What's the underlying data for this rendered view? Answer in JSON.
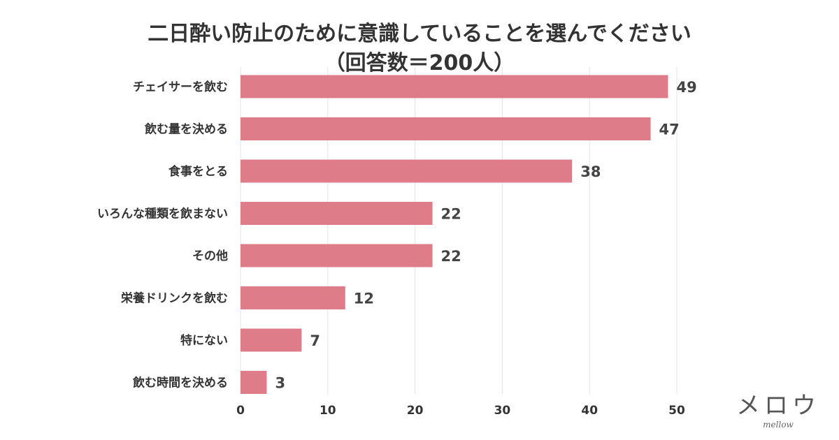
{
  "chart_data": {
    "type": "bar",
    "orientation": "horizontal",
    "title": "二日酔い防止のために意識していることを選んでください",
    "subtitle": "（回答数＝200人）",
    "categories": [
      "チェイサーを飲む",
      "飲む量を決める",
      "食事をとる",
      "いろんな種類を飲まない",
      "その他",
      "栄養ドリンクを飲む",
      "特にない",
      "飲む時間を決める"
    ],
    "values": [
      49,
      47,
      38,
      22,
      22,
      12,
      7,
      3
    ],
    "xlim": [
      0,
      50
    ],
    "xticks": [
      0,
      10,
      20,
      30,
      40,
      50
    ],
    "xlabel": "",
    "ylabel": "",
    "grid": true,
    "bar_color": "#de7d89",
    "grid_color": "#e4e4e4"
  },
  "logo": {
    "main": "メロウ",
    "sub": "mellow"
  }
}
